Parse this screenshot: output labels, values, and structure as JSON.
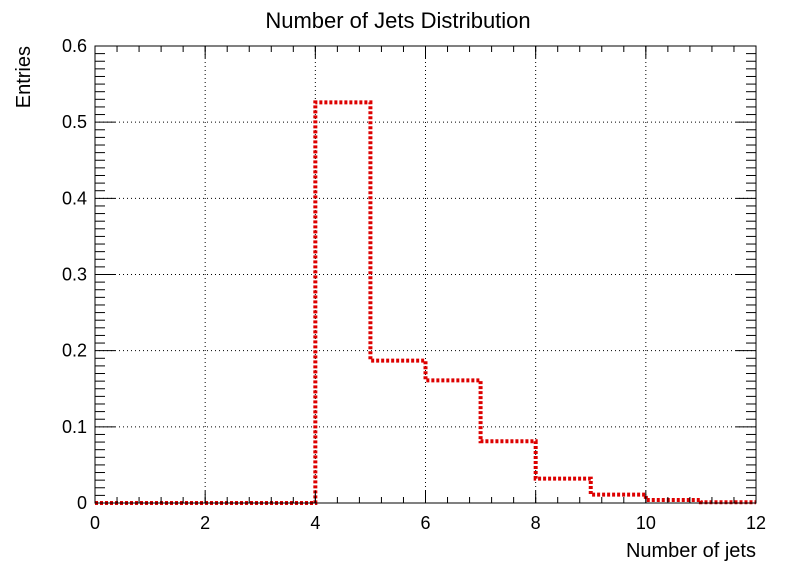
{
  "chart_data": {
    "type": "histogram",
    "title": "Number of Jets Distribution",
    "xlabel": "Number of jets",
    "ylabel": "Entries",
    "xlim": [
      0,
      12
    ],
    "ylim": [
      0,
      0.6
    ],
    "grid": true,
    "x_ticks": [
      0,
      2,
      4,
      6,
      8,
      10,
      12
    ],
    "x_tick_labels": [
      "0",
      "2",
      "4",
      "6",
      "8",
      "10",
      "12"
    ],
    "y_ticks": [
      0,
      0.1,
      0.2,
      0.3,
      0.4,
      0.5,
      0.6
    ],
    "y_tick_labels": [
      "0",
      "0.1",
      "0.2",
      "0.3",
      "0.4",
      "0.5",
      "0.6"
    ],
    "series": [
      {
        "bin_edges": [
          0,
          1,
          2,
          3,
          4,
          5,
          6,
          7,
          8,
          9,
          10,
          11,
          12
        ],
        "values": [
          0,
          0,
          0,
          0,
          0.526,
          0.187,
          0.161,
          0.081,
          0.032,
          0.011,
          0.004,
          0.001
        ],
        "color": "#dd0000",
        "line_style": "dotted"
      }
    ]
  }
}
